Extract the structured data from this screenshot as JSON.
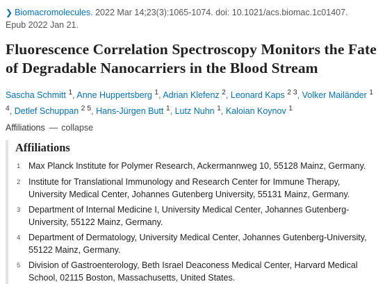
{
  "citation": {
    "journal": "Biomacromolecules.",
    "details": "2022 Mar 14;23(3):1065-1074. doi: 10.1021/acs.biomac.1c01407.",
    "epub": "Epub 2022 Jan 21."
  },
  "title": "Fluorescence Correlation Spectroscopy Monitors the Fate of Degradable Nanocarriers in the Blood Stream",
  "authors": [
    {
      "name": "Sascha Schmitt",
      "sup": "1"
    },
    {
      "name": "Anne Huppertsberg",
      "sup": "1"
    },
    {
      "name": "Adrian Klefenz",
      "sup": "2"
    },
    {
      "name": "Leonard Kaps",
      "sup": "2 3"
    },
    {
      "name": "Volker Mailänder",
      "sup": "1 4"
    },
    {
      "name": "Detlef Schuppan",
      "sup": "2 5"
    },
    {
      "name": "Hans-Jürgen Butt",
      "sup": "1"
    },
    {
      "name": "Lutz Nuhn",
      "sup": "1"
    },
    {
      "name": "Kaloian Koynov",
      "sup": "1"
    }
  ],
  "affiliations_toggle": {
    "label": "Affiliations",
    "dash": "—",
    "action": "collapse"
  },
  "affiliations_heading": "Affiliations",
  "affiliations": [
    {
      "num": "1",
      "text": "Max Planck Institute for Polymer Research, Ackermannweg 10, 55128 Mainz, Germany."
    },
    {
      "num": "2",
      "text": "Institute for Translational Immunology and Research Center for Immune Therapy, University Medical Center, Johannes Gutenberg University, 55131 Mainz, Germany."
    },
    {
      "num": "3",
      "text": "Department of Internal Medicine I, University Medical Center, Johannes Gutenberg-University, 55122 Mainz, Germany."
    },
    {
      "num": "4",
      "text": "Department of Dermatology, University Medical Center, Johannes Gutenberg-University, 55122 Mainz, Germany."
    },
    {
      "num": "5",
      "text": "Division of Gastroenterology, Beth Israel Deaconess Medical Center, Harvard Medical School, 02115 Boston, Massachusetts, United States."
    }
  ]
}
